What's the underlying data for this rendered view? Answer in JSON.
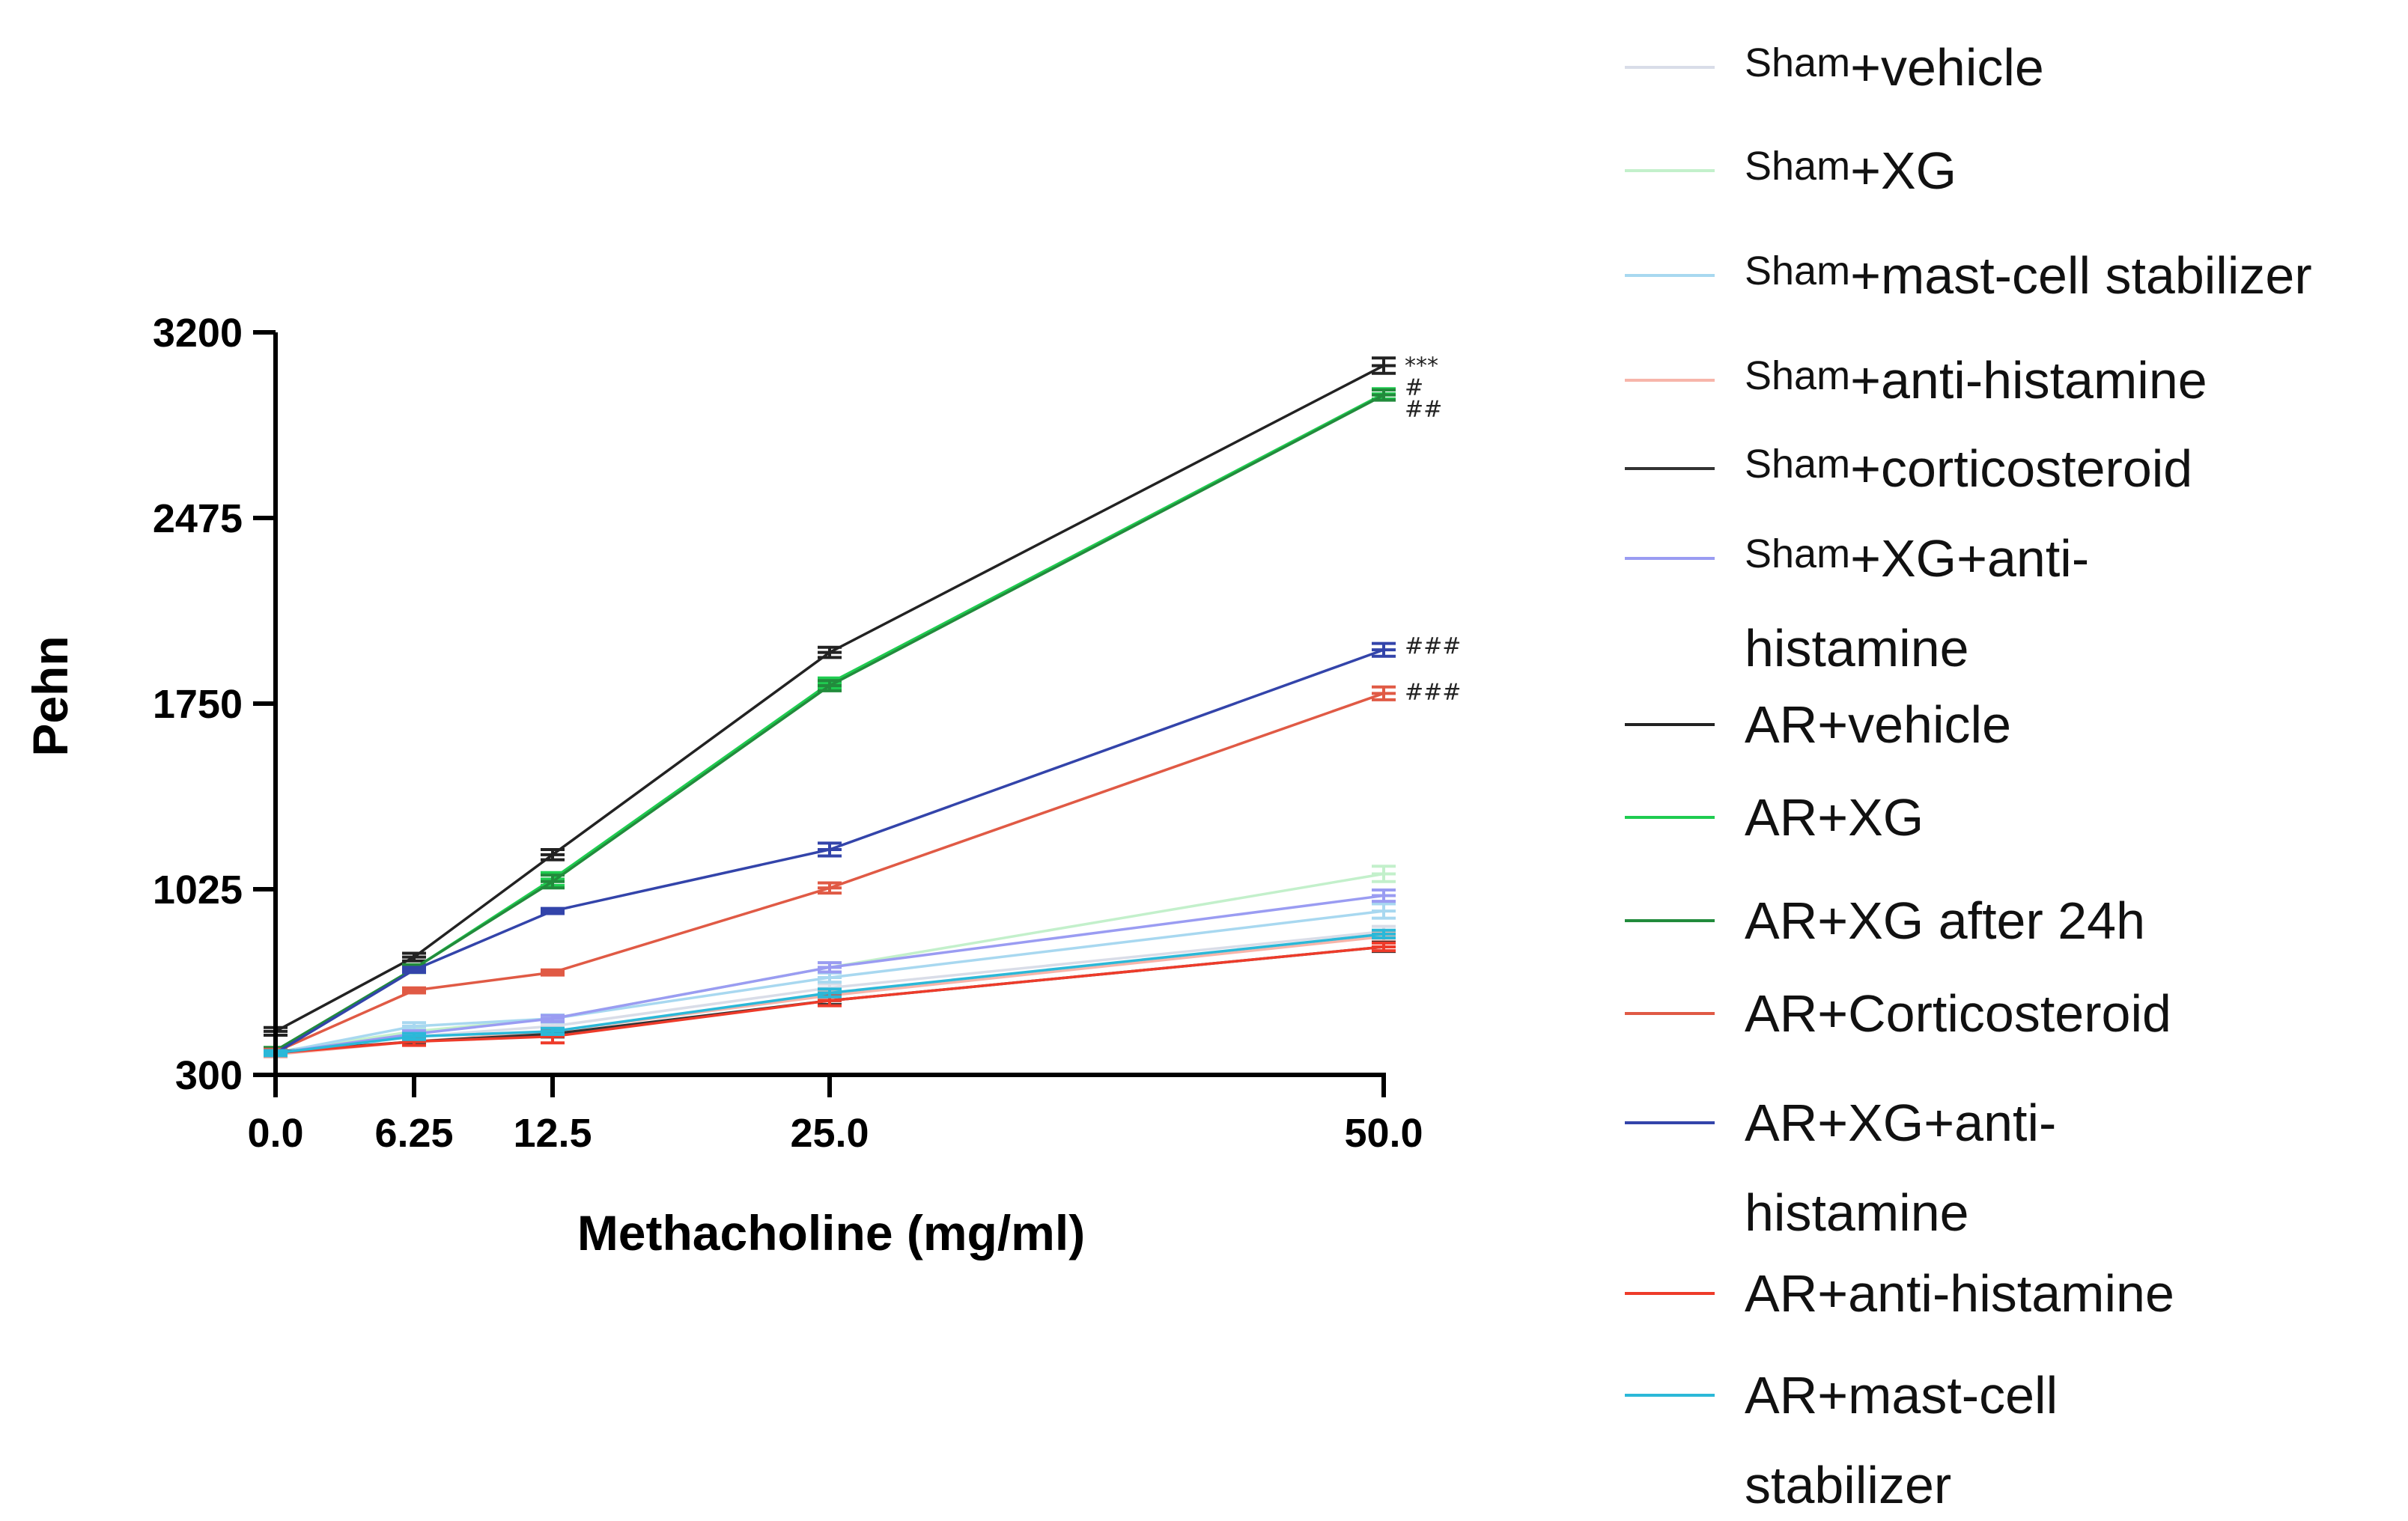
{
  "chart_data": {
    "type": "line",
    "xlabel": "Methacholine (mg/ml)",
    "ylabel": "Pehn",
    "x": [
      0,
      6.25,
      12.5,
      25,
      50
    ],
    "x_tick_labels": [
      "0.0",
      "6.25",
      "12.5",
      "25.0",
      "50.0"
    ],
    "y_ticks": [
      300,
      1025,
      1750,
      2475,
      3200
    ],
    "y_tick_labels": [
      "300",
      "1025",
      "1750",
      "2475",
      "3200"
    ],
    "ylim": [
      300,
      3200
    ],
    "xlim": [
      0,
      50
    ],
    "legend_position": "right",
    "series": [
      {
        "name_prefix": "Sham",
        "name": "+vehicle",
        "color": "#d9dde8",
        "values": [
          385,
          450,
          490,
          640,
          860
        ],
        "errors": [
          10,
          12,
          12,
          15,
          20
        ]
      },
      {
        "name_prefix": "Sham",
        "name": "+XG",
        "color": "#c3f0cb",
        "values": [
          390,
          470,
          520,
          720,
          1085
        ],
        "errors": [
          10,
          12,
          12,
          18,
          30
        ]
      },
      {
        "name_prefix": "Sham",
        "name": "+mast-cell stabilizer",
        "color": "#a8d8f0",
        "values": [
          385,
          490,
          520,
          680,
          940
        ],
        "errors": [
          10,
          14,
          14,
          18,
          28
        ]
      },
      {
        "name_prefix": "Sham",
        "name": "+anti-histamine",
        "color": "#f7b5aa",
        "values": [
          380,
          430,
          470,
          610,
          840
        ],
        "errors": [
          10,
          12,
          12,
          15,
          18
        ]
      },
      {
        "name_prefix": "Sham",
        "name": "+corticosteroid",
        "color": "#333333",
        "values": [
          390,
          430,
          460,
          590,
          800
        ],
        "errors": [
          10,
          12,
          12,
          15,
          18
        ]
      },
      {
        "name_prefix": "Sham",
        "name": "+XG+anti-histamine",
        "color": "#9a9cf2",
        "values": [
          385,
          460,
          520,
          720,
          1000
        ],
        "errors": [
          10,
          12,
          12,
          18,
          22
        ]
      },
      {
        "name_prefix": "",
        "name": "AR+vehicle",
        "color": "#222222",
        "values": [
          470,
          760,
          1160,
          1950,
          3070
        ],
        "errors": [
          15,
          15,
          20,
          20,
          30
        ]
      },
      {
        "name_prefix": "",
        "name": "AR+XG",
        "color": "#1fcc50",
        "values": [
          395,
          715,
          1065,
          1830,
          2960
        ],
        "errors": [
          12,
          15,
          25,
          20,
          20
        ]
      },
      {
        "name_prefix": "",
        "name": "AR+XG after 24h",
        "color": "#228b3c",
        "values": [
          395,
          715,
          1055,
          1820,
          2955
        ],
        "errors": [
          12,
          15,
          25,
          20,
          20
        ]
      },
      {
        "name_prefix": "",
        "name": "AR+Corticosteroid",
        "color": "#e05a45",
        "values": [
          390,
          630,
          700,
          1030,
          1790
        ],
        "errors": [
          10,
          10,
          10,
          20,
          25
        ]
      },
      {
        "name_prefix": "",
        "name": "AR+XG+anti-histamine",
        "color": "#3344aa",
        "values": [
          385,
          710,
          940,
          1180,
          1960
        ],
        "errors": [
          10,
          10,
          10,
          25,
          25
        ]
      },
      {
        "name_prefix": "",
        "name": "AR+anti-histamine",
        "color": "#ee3b2a",
        "values": [
          385,
          430,
          450,
          590,
          800
        ],
        "errors": [
          10,
          15,
          25,
          20,
          15
        ]
      },
      {
        "name_prefix": "",
        "name": "AR+mast-cell stabilizer",
        "color": "#2bb8d8",
        "values": [
          385,
          450,
          470,
          620,
          850
        ],
        "errors": [
          10,
          12,
          12,
          15,
          15
        ]
      }
    ],
    "annotations": [
      {
        "text": "***",
        "x": 50,
        "y": 3070
      },
      {
        "text": "#",
        "x": 50,
        "y": 2985
      },
      {
        "text": "##",
        "x": 50,
        "y": 2900
      },
      {
        "text": "###",
        "x": 50,
        "y": 1975
      },
      {
        "text": "###",
        "x": 50,
        "y": 1795
      }
    ],
    "legend_lines": [
      [
        "Sham",
        "+vehicle"
      ],
      [
        "Sham",
        "+XG"
      ],
      [
        "Sham",
        "+mast-cell stabilizer"
      ],
      [
        "Sham",
        "+anti-histamine"
      ],
      [
        "Sham",
        "+corticosteroid"
      ],
      [
        "Sham",
        "+XG+anti-",
        "histamine"
      ],
      [
        "",
        "AR+vehicle"
      ],
      [
        "",
        "AR+XG"
      ],
      [
        "",
        "AR+XG after 24h"
      ],
      [
        "",
        "AR+Corticosteroid"
      ],
      [
        "",
        "AR+XG+anti-",
        "histamine"
      ],
      [
        "",
        "AR+anti-histamine"
      ],
      [
        "",
        "AR+mast-cell",
        "stabilizer"
      ]
    ]
  }
}
